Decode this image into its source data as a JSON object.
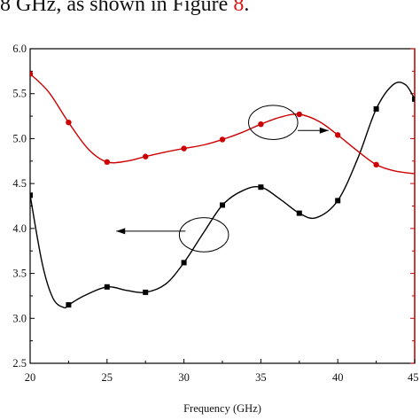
{
  "caption": {
    "prefix": "8 GHz, as shown in Figure ",
    "ref": "8",
    "suffix": "."
  },
  "colors": {
    "black_series": "#000000",
    "red_series": "#cc0000",
    "red_axis": "#cc0000",
    "grid": "none"
  },
  "chart_data": {
    "type": "line",
    "xlabel": "Frequency (GHz)",
    "ylabel_left": "",
    "ylabel_right": "",
    "xlim": [
      20,
      45
    ],
    "ylim": [
      2.5,
      6.0
    ],
    "x_ticks": [
      "20",
      "25",
      "30",
      "35",
      "40",
      "45"
    ],
    "y_ticks": [
      "2.5",
      "3.0",
      "3.5",
      "4.0",
      "4.5",
      "5.0",
      "5.5",
      "6.0"
    ],
    "grid": false,
    "legend": "none",
    "series": [
      {
        "axis": "left",
        "color": "#000000",
        "marker": "square",
        "markers": [
          [
            20,
            4.37
          ],
          [
            22.5,
            3.15
          ],
          [
            25,
            3.35
          ],
          [
            27.5,
            3.29
          ],
          [
            30,
            3.62
          ],
          [
            32.5,
            4.26
          ],
          [
            35,
            4.46
          ],
          [
            37.5,
            4.17
          ],
          [
            40,
            4.31
          ],
          [
            42.5,
            5.33
          ],
          [
            45,
            5.44
          ]
        ],
        "curve": [
          [
            20,
            4.37
          ],
          [
            20.8,
            3.6
          ],
          [
            21.5,
            3.22
          ],
          [
            22.2,
            3.12
          ],
          [
            22.5,
            3.15
          ],
          [
            23.5,
            3.25
          ],
          [
            25,
            3.35
          ],
          [
            26.3,
            3.31
          ],
          [
            27.5,
            3.29
          ],
          [
            28.8,
            3.38
          ],
          [
            30,
            3.62
          ],
          [
            31.3,
            3.96
          ],
          [
            32.5,
            4.26
          ],
          [
            33.8,
            4.42
          ],
          [
            35,
            4.46
          ],
          [
            36.3,
            4.32
          ],
          [
            37.5,
            4.17
          ],
          [
            38.6,
            4.12
          ],
          [
            40,
            4.31
          ],
          [
            41.3,
            4.78
          ],
          [
            42.5,
            5.33
          ],
          [
            43.6,
            5.6
          ],
          [
            44.4,
            5.6
          ],
          [
            45,
            5.44
          ]
        ]
      },
      {
        "axis": "right",
        "color": "#cc0000",
        "marker": "circle",
        "markers": [
          [
            20,
            5.72
          ],
          [
            22.5,
            5.18
          ],
          [
            25,
            4.74
          ],
          [
            27.5,
            4.8
          ],
          [
            30,
            4.89
          ],
          [
            32.5,
            4.99
          ],
          [
            35,
            5.16
          ],
          [
            37.5,
            5.27
          ],
          [
            40,
            5.04
          ],
          [
            42.5,
            4.71
          ]
        ],
        "curve": [
          [
            20,
            5.72
          ],
          [
            21.2,
            5.52
          ],
          [
            22.5,
            5.18
          ],
          [
            23.8,
            4.88
          ],
          [
            25,
            4.74
          ],
          [
            26.3,
            4.75
          ],
          [
            27.5,
            4.8
          ],
          [
            28.8,
            4.85
          ],
          [
            30,
            4.89
          ],
          [
            31.3,
            4.93
          ],
          [
            32.5,
            4.99
          ],
          [
            33.8,
            5.07
          ],
          [
            35,
            5.16
          ],
          [
            36.3,
            5.24
          ],
          [
            37.5,
            5.27
          ],
          [
            38.8,
            5.19
          ],
          [
            40,
            5.04
          ],
          [
            41.3,
            4.86
          ],
          [
            42.5,
            4.71
          ],
          [
            43.7,
            4.64
          ],
          [
            45,
            4.61
          ]
        ]
      }
    ],
    "annotations": [
      {
        "type": "ellipse",
        "cx": 31.3,
        "cy": 3.93,
        "rx": 1.6,
        "ry": 0.19
      },
      {
        "type": "arrow",
        "from": [
          30.1,
          3.97
        ],
        "to": [
          25.6,
          3.97
        ]
      },
      {
        "type": "ellipse",
        "cx": 35.8,
        "cy": 5.18,
        "rx": 1.6,
        "ry": 0.19
      },
      {
        "type": "arrow",
        "from": [
          37.4,
          5.09
        ],
        "to": [
          39.4,
          5.09
        ]
      }
    ]
  }
}
